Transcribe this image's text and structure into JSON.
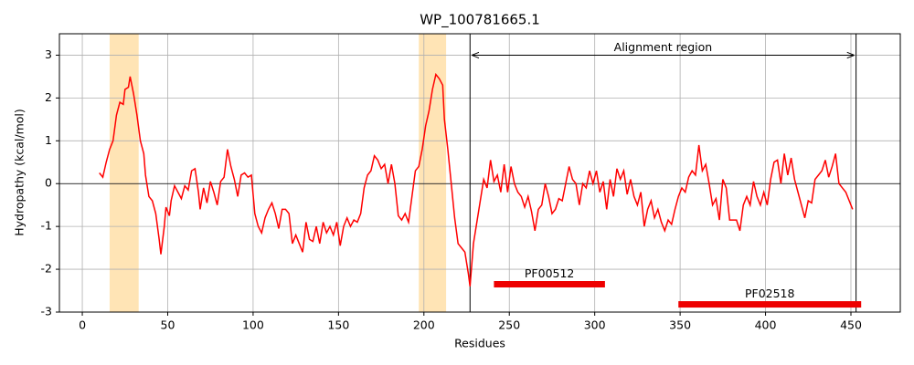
{
  "chart_data": {
    "type": "line",
    "title": "WP_100781665.1",
    "xlabel": "Residues",
    "ylabel": "Hydropathy (kcal/mol)",
    "xlim": [
      -13.4,
      478.9
    ],
    "ylim": [
      -3,
      3.5
    ],
    "xticks": [
      0,
      50,
      100,
      150,
      200,
      250,
      300,
      350,
      400,
      450
    ],
    "yticks": [
      -3,
      -2,
      -1,
      0,
      1,
      2,
      3
    ],
    "grid": true,
    "color": "#ff0000",
    "x": [
      10,
      12,
      14,
      16,
      18,
      20,
      22,
      24,
      25,
      27,
      28,
      30,
      32,
      34,
      36,
      37,
      39,
      41,
      43,
      45,
      46,
      48,
      49,
      51,
      52,
      54,
      56,
      58,
      60,
      62,
      64,
      66,
      68,
      69,
      71,
      73,
      75,
      77,
      79,
      81,
      83,
      85,
      87,
      89,
      91,
      93,
      95,
      97,
      99,
      101,
      103,
      105,
      107,
      109,
      111,
      113,
      115,
      117,
      119,
      121,
      123,
      125,
      127,
      129,
      131,
      133,
      135,
      137,
      139,
      141,
      143,
      145,
      147,
      149,
      151,
      153,
      155,
      157,
      159,
      161,
      163,
      165,
      167,
      169,
      171,
      173,
      175,
      177,
      179,
      181,
      183,
      185,
      187,
      189,
      191,
      193,
      195,
      197,
      199,
      201,
      203,
      205,
      207,
      209,
      211,
      212,
      214,
      216,
      218,
      220,
      222,
      224,
      226,
      227,
      229,
      231,
      233,
      235,
      237,
      239,
      241,
      243,
      245,
      247,
      249,
      251,
      253,
      255,
      257,
      259,
      261,
      263,
      265,
      267,
      269,
      271,
      273,
      275,
      277,
      279,
      281,
      283,
      285,
      287,
      289,
      291,
      293,
      295,
      297,
      299,
      301,
      303,
      305,
      307,
      309,
      311,
      313,
      315,
      317,
      319,
      321,
      323,
      325,
      327,
      329,
      331,
      333,
      335,
      337,
      339,
      341,
      343,
      345,
      347,
      349,
      351,
      353,
      355,
      357,
      359,
      361,
      363,
      365,
      367,
      369,
      371,
      373,
      375,
      377,
      379,
      381,
      383,
      385,
      387,
      389,
      391,
      393,
      395,
      397,
      399,
      401,
      403,
      405,
      407,
      409,
      411,
      413,
      415,
      417,
      419,
      421,
      423,
      425,
      427,
      429,
      431,
      433,
      435,
      437,
      439,
      441,
      443,
      445,
      447,
      449,
      451
    ],
    "values": [
      0.25,
      0.15,
      0.5,
      0.8,
      1.0,
      1.6,
      1.9,
      1.85,
      2.2,
      2.25,
      2.5,
      2.1,
      1.6,
      1.0,
      0.7,
      0.2,
      -0.3,
      -0.4,
      -0.7,
      -1.3,
      -1.65,
      -1.0,
      -0.55,
      -0.75,
      -0.4,
      -0.05,
      -0.2,
      -0.35,
      -0.05,
      -0.15,
      0.3,
      0.35,
      -0.2,
      -0.6,
      -0.1,
      -0.45,
      0.05,
      -0.2,
      -0.5,
      0.05,
      0.15,
      0.8,
      0.4,
      0.1,
      -0.3,
      0.2,
      0.25,
      0.15,
      0.2,
      -0.7,
      -1.0,
      -1.15,
      -0.8,
      -0.6,
      -0.45,
      -0.7,
      -1.05,
      -0.6,
      -0.6,
      -0.7,
      -1.4,
      -1.2,
      -1.4,
      -1.6,
      -0.9,
      -1.3,
      -1.35,
      -1.0,
      -1.4,
      -0.9,
      -1.15,
      -1.0,
      -1.2,
      -0.9,
      -1.45,
      -1.0,
      -0.8,
      -1.0,
      -0.85,
      -0.9,
      -0.7,
      -0.1,
      0.2,
      0.3,
      0.65,
      0.55,
      0.35,
      0.45,
      0.0,
      0.45,
      0.0,
      -0.75,
      -0.85,
      -0.7,
      -0.9,
      -0.3,
      0.3,
      0.4,
      0.8,
      1.35,
      1.7,
      2.2,
      2.55,
      2.45,
      2.3,
      1.5,
      0.8,
      0.0,
      -0.8,
      -1.4,
      -1.5,
      -1.6,
      -2.1,
      -2.4,
      -1.4,
      -0.9,
      -0.4,
      0.1,
      -0.1,
      0.55,
      0.05,
      0.2,
      -0.2,
      0.45,
      -0.2,
      0.4,
      0.0,
      -0.2,
      -0.3,
      -0.55,
      -0.3,
      -0.65,
      -1.1,
      -0.6,
      -0.5,
      0.0,
      -0.3,
      -0.7,
      -0.6,
      -0.35,
      -0.4,
      0.0,
      0.4,
      0.1,
      0.0,
      -0.5,
      0.0,
      -0.1,
      0.3,
      0.0,
      0.3,
      -0.2,
      0.05,
      -0.6,
      0.1,
      -0.3,
      0.35,
      0.1,
      0.3,
      -0.25,
      0.1,
      -0.3,
      -0.5,
      -0.2,
      -1.0,
      -0.6,
      -0.4,
      -0.8,
      -0.6,
      -0.9,
      -1.1,
      -0.85,
      -0.95,
      -0.6,
      -0.3,
      -0.1,
      -0.2,
      0.15,
      0.3,
      0.2,
      0.9,
      0.3,
      0.45,
      0.0,
      -0.5,
      -0.35,
      -0.85,
      0.1,
      -0.1,
      -0.85,
      -0.85,
      -0.85,
      -1.1,
      -0.5,
      -0.3,
      -0.5,
      0.05,
      -0.3,
      -0.5,
      -0.2,
      -0.5,
      0.1,
      0.5,
      0.55,
      0.0,
      0.7,
      0.2,
      0.6,
      0.1,
      -0.2,
      -0.5,
      -0.8,
      -0.4,
      -0.45,
      0.1,
      0.2,
      0.3,
      0.55,
      0.15,
      0.4,
      0.7,
      0.0,
      -0.1,
      -0.2,
      -0.4,
      -0.6
    ],
    "highlight_spans": [
      [
        16,
        33
      ],
      [
        197,
        213
      ]
    ],
    "highlight_color": "#ffe4b5",
    "hline": 0,
    "vlines": [
      227,
      453
    ],
    "annotation": {
      "text": "Alignment region",
      "x": [
        228,
        452
      ],
      "y": 3
    },
    "domains": [
      {
        "label": "PF00512",
        "start": 241,
        "end": 306,
        "y": -2.35
      },
      {
        "label": "PF02518",
        "start": 349,
        "end": 456,
        "y": -2.82
      }
    ],
    "domain_color": "#ee0000"
  }
}
